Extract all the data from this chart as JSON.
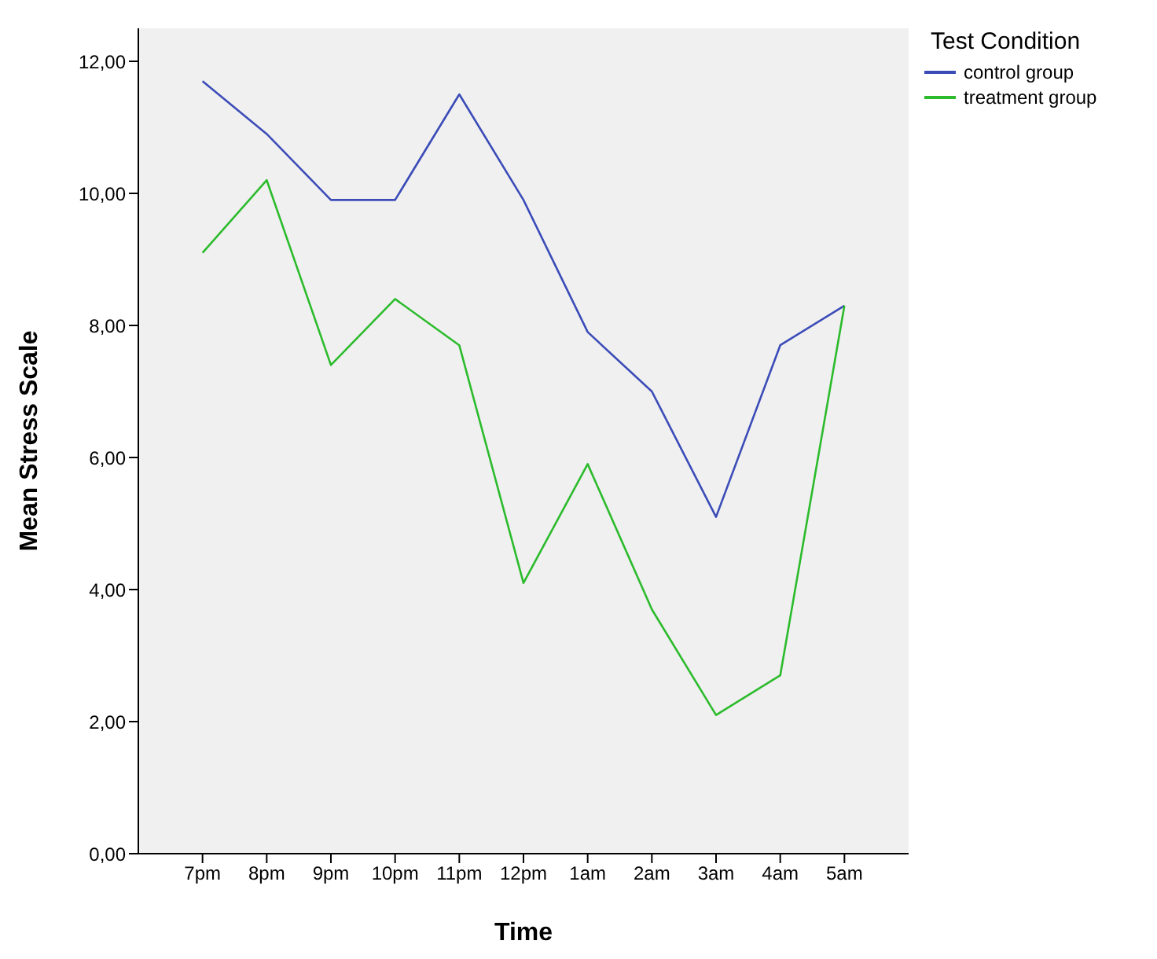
{
  "chart_data": {
    "type": "line",
    "xlabel": "Time",
    "ylabel": "Mean Stress Scale",
    "legend_title": "Test Condition",
    "legend": "top right",
    "grid": false,
    "marker": "none",
    "line_style": "solid",
    "categories": [
      "7pm",
      "8pm",
      "9pm",
      "10pm",
      "11pm",
      "12pm",
      "1am",
      "2am",
      "3am",
      "4am",
      "5am"
    ],
    "ylim": [
      0,
      12.5
    ],
    "yticks": [
      {
        "value": 0,
        "label": "0,00"
      },
      {
        "value": 2,
        "label": "2,00"
      },
      {
        "value": 4,
        "label": "4,00"
      },
      {
        "value": 6,
        "label": "6,00"
      },
      {
        "value": 8,
        "label": "8,00"
      },
      {
        "value": 10,
        "label": "10,00"
      },
      {
        "value": 12,
        "label": "12,00"
      }
    ],
    "series": [
      {
        "name": "control group",
        "color": "#3b4cb8",
        "values": [
          11.7,
          10.9,
          9.9,
          9.9,
          11.5,
          9.9,
          7.9,
          7.0,
          5.1,
          7.7,
          8.3
        ]
      },
      {
        "name": "treatment group",
        "color": "#2cbb2c",
        "values": [
          9.1,
          10.2,
          7.4,
          8.4,
          7.7,
          4.1,
          5.9,
          3.7,
          2.1,
          2.7,
          8.3
        ]
      }
    ]
  }
}
